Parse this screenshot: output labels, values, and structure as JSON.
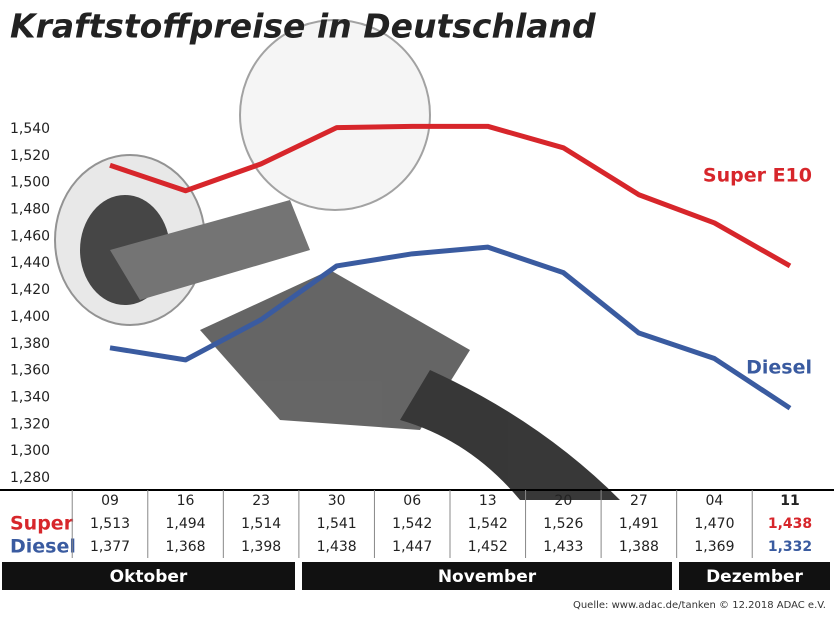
{
  "chart_data": {
    "type": "line",
    "title": "Kraftstoffpreise in Deutschland",
    "categories": [
      "09",
      "16",
      "23",
      "30",
      "06",
      "13",
      "20",
      "27",
      "04",
      "11"
    ],
    "months": [
      "Oktober",
      "November",
      "Dezember"
    ],
    "table_row_labels": [
      "Super",
      "Diesel"
    ],
    "series": [
      {
        "name": "Super E10",
        "color": "#d7262b",
        "values": [
          1.513,
          1.494,
          1.514,
          1.541,
          1.542,
          1.542,
          1.526,
          1.491,
          1.47,
          1.438
        ],
        "value_labels": [
          "1,513",
          "1,494",
          "1,514",
          "1,541",
          "1,542",
          "1,542",
          "1,526",
          "1,491",
          "1,470",
          "1,438"
        ]
      },
      {
        "name": "Diesel",
        "color": "#3a5ba0",
        "values": [
          1.377,
          1.368,
          1.398,
          1.438,
          1.447,
          1.452,
          1.433,
          1.388,
          1.369,
          1.332
        ],
        "value_labels": [
          "1,377",
          "1,368",
          "1,398",
          "1,438",
          "1,447",
          "1,452",
          "1,433",
          "1,388",
          "1,369",
          "1,332"
        ]
      }
    ],
    "ylim": [
      1.28,
      1.54
    ],
    "yticks": [
      {
        "value": 1.28,
        "label": "1,280"
      },
      {
        "value": 1.3,
        "label": "1,300"
      },
      {
        "value": 1.32,
        "label": "1,320"
      },
      {
        "value": 1.34,
        "label": "1,340"
      },
      {
        "value": 1.36,
        "label": "1,360"
      },
      {
        "value": 1.38,
        "label": "1,380"
      },
      {
        "value": 1.4,
        "label": "1,400"
      },
      {
        "value": 1.42,
        "label": "1,420"
      },
      {
        "value": 1.44,
        "label": "1,440"
      },
      {
        "value": 1.46,
        "label": "1,460"
      },
      {
        "value": 1.48,
        "label": "1,480"
      },
      {
        "value": 1.5,
        "label": "1,500"
      },
      {
        "value": 1.52,
        "label": "1,520"
      },
      {
        "value": 1.54,
        "label": "1,540"
      }
    ],
    "grid": false,
    "source": "Quelle: www.adac.de/tanken  © 12.2018  ADAC e.V."
  }
}
